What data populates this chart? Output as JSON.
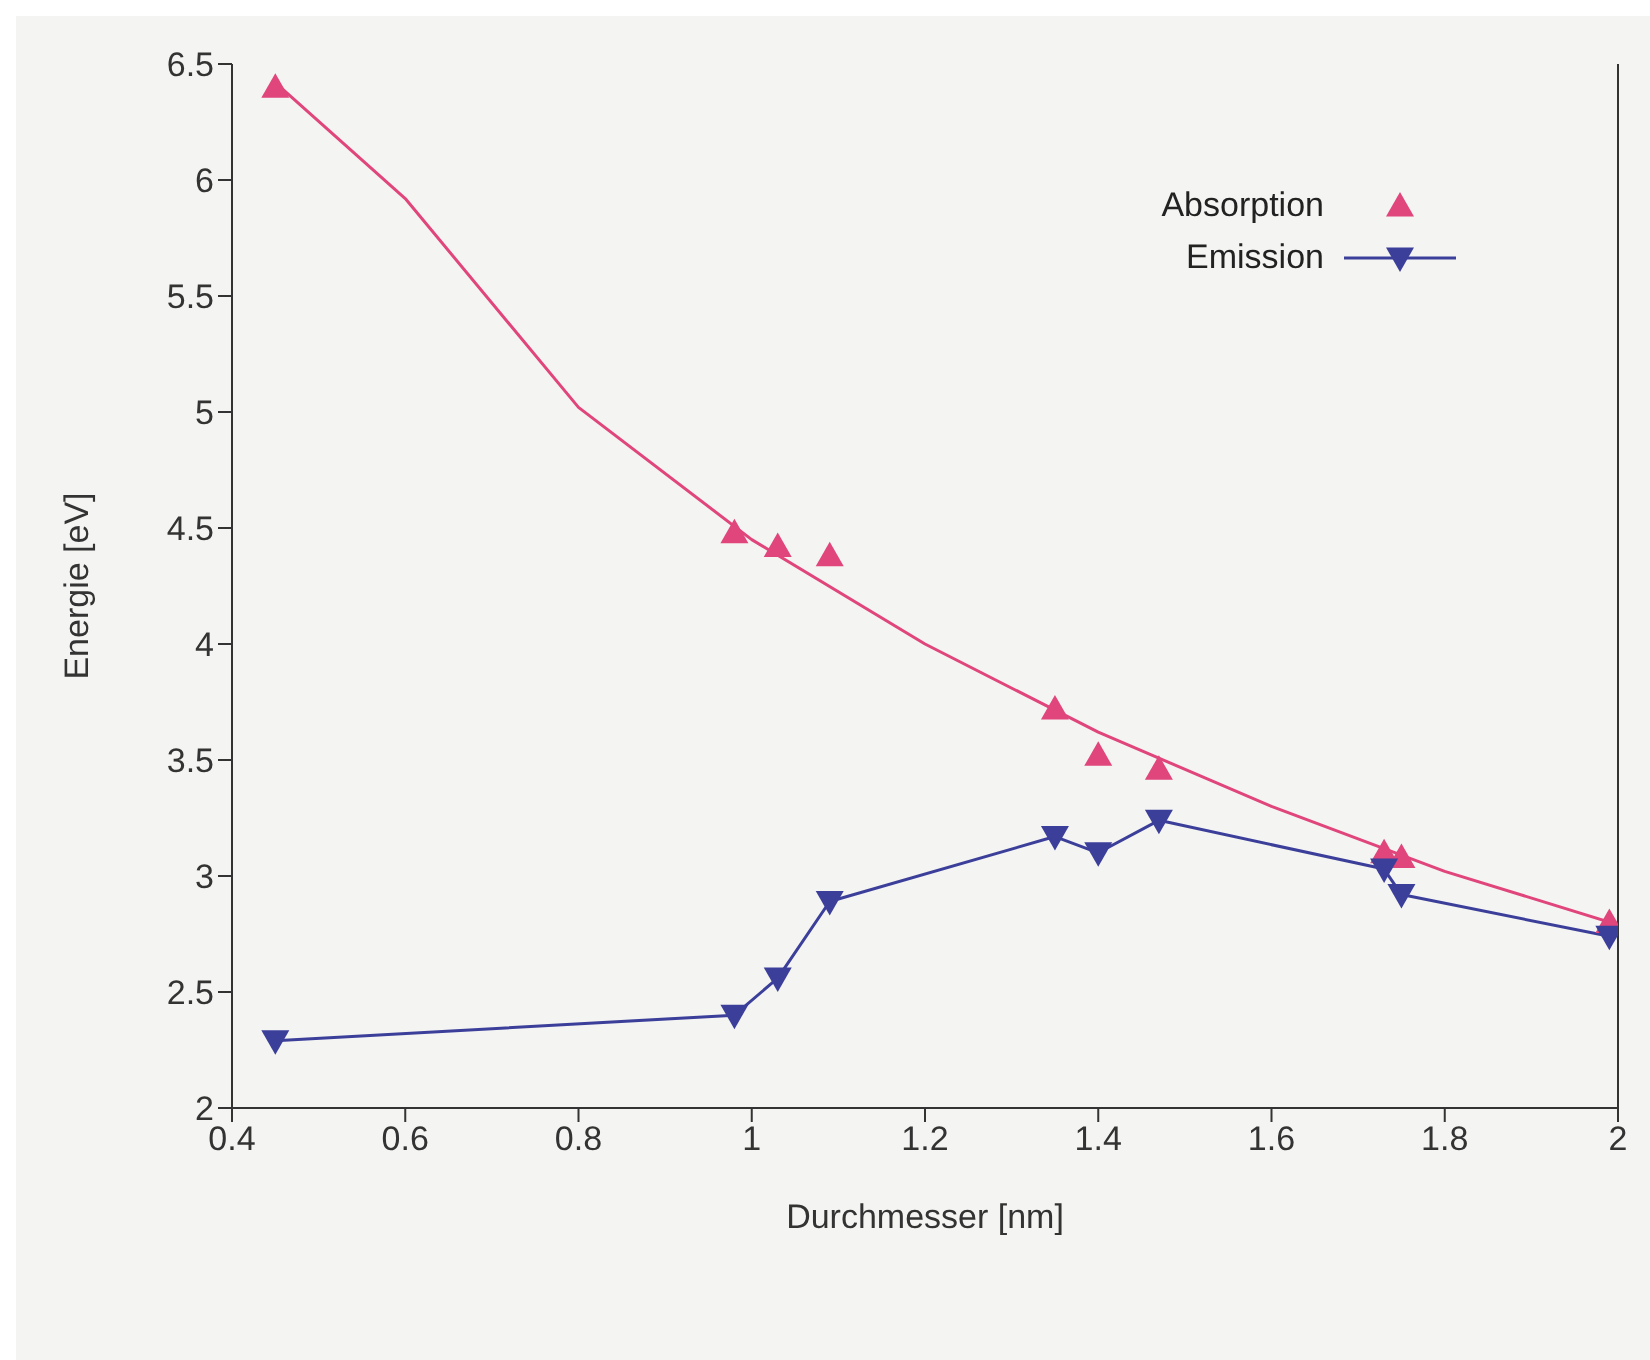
{
  "chart_data": {
    "type": "line",
    "xlabel": "Durchmesser [nm]",
    "ylabel": "Energie [eV]",
    "xlim": [
      0.4,
      2
    ],
    "xticks": [
      0.4,
      0.6,
      0.8,
      1,
      1.2,
      1.4,
      1.6,
      1.8,
      2
    ],
    "ylim": [
      2,
      6.5
    ],
    "yticks": [
      2,
      2.5,
      3,
      3.5,
      4,
      4.5,
      5,
      5.5,
      6,
      6.5
    ],
    "grid": false,
    "legend": "top right",
    "series": [
      {
        "name": "Absorption",
        "type": "scatter",
        "color": "#e0457b",
        "marker": "triangle",
        "x": [
          0.45,
          0.98,
          1.03,
          1.09,
          1.35,
          1.4,
          1.47,
          1.73,
          1.75,
          1.99
        ],
        "values": [
          6.4,
          4.48,
          4.42,
          4.38,
          3.72,
          3.52,
          3.46,
          3.1,
          3.08,
          2.8
        ]
      },
      {
        "name": "Emission",
        "type": "line",
        "color": "#3b3f9a",
        "marker": "triangle_down",
        "x": [
          0.45,
          0.98,
          1.03,
          1.09,
          1.35,
          1.4,
          1.47,
          1.73,
          1.75,
          1.99
        ],
        "values": [
          2.29,
          2.4,
          2.56,
          2.89,
          3.17,
          3.1,
          3.24,
          3.03,
          2.92,
          2.74
        ]
      },
      {
        "type": "line",
        "color": "#e0457b",
        "marker": "none",
        "x": [
          0.45,
          0.6,
          0.8,
          1.0,
          1.2,
          1.4,
          1.6,
          1.8,
          2.0
        ],
        "values": [
          6.42,
          5.92,
          5.02,
          4.45,
          4.0,
          3.62,
          3.3,
          3.02,
          2.79
        ]
      }
    ]
  }
}
